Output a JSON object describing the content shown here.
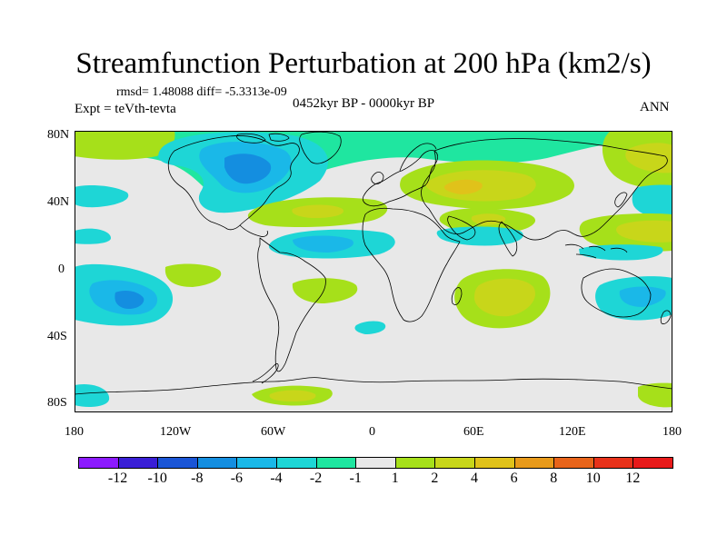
{
  "title": "Streamfunction Perturbation at 200 hPa (km2/s)",
  "stats": {
    "rmsd_text": "rmsd= 1.48088 diff= -5.3313e-09"
  },
  "experiment": "Expt = teVth-tevta",
  "period": "0452kyr BP - 0000kyr BP",
  "season": "ANN",
  "lat_ticks": [
    "80N",
    "40N",
    "0",
    "40S",
    "80S"
  ],
  "lon_ticks": [
    "180",
    "120W",
    "60W",
    "0",
    "60E",
    "120E",
    "180"
  ],
  "colorbar": {
    "labels": [
      "-12",
      "-10",
      "-8",
      "-6",
      "-4",
      "-2",
      "-1",
      "1",
      "2",
      "4",
      "6",
      "8",
      "10",
      "12"
    ],
    "colors": [
      "#8c1aff",
      "#3a1fd6",
      "#1a55d6",
      "#148ee0",
      "#1ab8e8",
      "#1ed6d6",
      "#1fe6a0",
      "#e8e8e8",
      "#a6e01a",
      "#c8d61a",
      "#e0c21a",
      "#e89a1a",
      "#e8641a",
      "#e8321a",
      "#e81a1a"
    ]
  },
  "colors": {
    "background": "#e8e8e8",
    "coast": "#000000"
  }
}
